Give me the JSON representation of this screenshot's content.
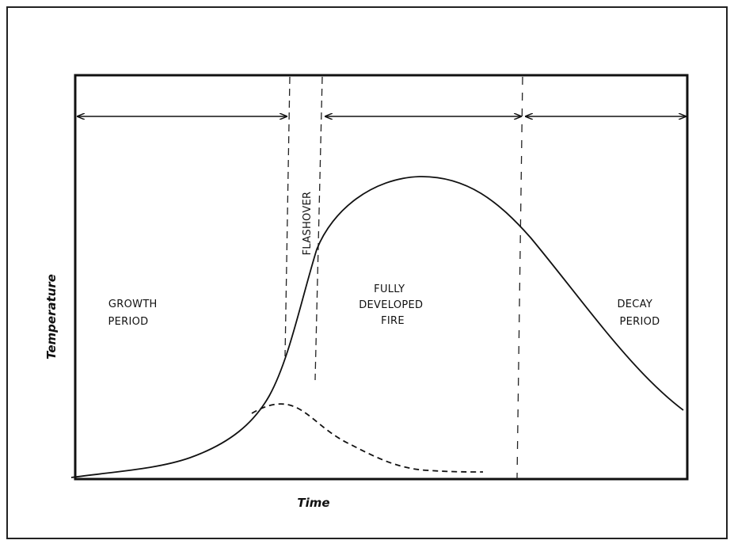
{
  "axes": {
    "y_label": "Temperature",
    "x_label": "Time"
  },
  "regions": {
    "growth": [
      "GROWTH",
      "PERIOD"
    ],
    "flashover": "FLASHOVER",
    "fully_developed": [
      "FULLY",
      "DEVELOPED",
      "FIRE"
    ],
    "decay": [
      "DECAY",
      "PERIOD"
    ]
  }
}
